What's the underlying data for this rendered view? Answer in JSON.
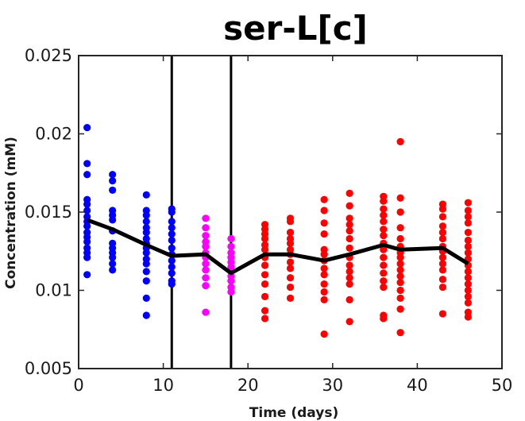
{
  "chart_data": {
    "type": "scatter",
    "title": "ser-L[c]",
    "xlabel": "Time (days)",
    "ylabel": "Concentration (mM)",
    "xlim": [
      0,
      50
    ],
    "ylim": [
      0.005,
      0.025
    ],
    "xticks": [
      0,
      10,
      20,
      30,
      40,
      50
    ],
    "yticks": [
      0.005,
      0.01,
      0.015,
      0.02,
      0.025
    ],
    "xtick_labels": [
      "0",
      "10",
      "20",
      "30",
      "40",
      "50"
    ],
    "ytick_labels": [
      "0.005",
      "0.01",
      "0.015",
      "0.02",
      "0.025"
    ],
    "grid": false,
    "vertical_lines": [
      11,
      18
    ],
    "series": [
      {
        "color": "#0000ff",
        "points": [
          [
            1,
            0.0204
          ],
          [
            1,
            0.0181
          ],
          [
            1,
            0.0174
          ],
          [
            1,
            0.0158
          ],
          [
            1,
            0.0155
          ],
          [
            1,
            0.0151
          ],
          [
            1,
            0.0147
          ],
          [
            1,
            0.0144
          ],
          [
            1,
            0.0141
          ],
          [
            1,
            0.0137
          ],
          [
            1,
            0.0134
          ],
          [
            1,
            0.0131
          ],
          [
            1,
            0.0127
          ],
          [
            1,
            0.0124
          ],
          [
            1,
            0.0121
          ],
          [
            1,
            0.011
          ],
          [
            4,
            0.0174
          ],
          [
            4,
            0.017
          ],
          [
            4,
            0.0164
          ],
          [
            4,
            0.0151
          ],
          [
            4,
            0.0148
          ],
          [
            4,
            0.0145
          ],
          [
            4,
            0.0138
          ],
          [
            4,
            0.013
          ],
          [
            4,
            0.0127
          ],
          [
            4,
            0.0124
          ],
          [
            4,
            0.0121
          ],
          [
            4,
            0.0117
          ],
          [
            4,
            0.0113
          ],
          [
            8,
            0.0161
          ],
          [
            8,
            0.0151
          ],
          [
            8,
            0.0148
          ],
          [
            8,
            0.0144
          ],
          [
            8,
            0.014
          ],
          [
            8,
            0.0137
          ],
          [
            8,
            0.0133
          ],
          [
            8,
            0.013
          ],
          [
            8,
            0.0127
          ],
          [
            8,
            0.0124
          ],
          [
            8,
            0.012
          ],
          [
            8,
            0.0117
          ],
          [
            8,
            0.0112
          ],
          [
            8,
            0.0106
          ],
          [
            8,
            0.0095
          ],
          [
            8,
            0.0084
          ],
          [
            11,
            0.0152
          ],
          [
            11,
            0.015
          ],
          [
            11,
            0.0144
          ],
          [
            11,
            0.014
          ],
          [
            11,
            0.0136
          ],
          [
            11,
            0.0132
          ],
          [
            11,
            0.0127
          ],
          [
            11,
            0.0123
          ],
          [
            11,
            0.0119
          ],
          [
            11,
            0.0115
          ],
          [
            11,
            0.0111
          ],
          [
            11,
            0.0106
          ],
          [
            11,
            0.0104
          ]
        ]
      },
      {
        "color": "#ff00ff",
        "points": [
          [
            15,
            0.0146
          ],
          [
            15,
            0.014
          ],
          [
            15,
            0.0135
          ],
          [
            15,
            0.0131
          ],
          [
            15,
            0.0128
          ],
          [
            15,
            0.0124
          ],
          [
            15,
            0.0121
          ],
          [
            15,
            0.0117
          ],
          [
            15,
            0.0113
          ],
          [
            15,
            0.0108
          ],
          [
            15,
            0.0103
          ],
          [
            15,
            0.0086
          ],
          [
            18,
            0.0133
          ],
          [
            18,
            0.0128
          ],
          [
            18,
            0.0124
          ],
          [
            18,
            0.0121
          ],
          [
            18,
            0.0118
          ],
          [
            18,
            0.0115
          ],
          [
            18,
            0.0112
          ],
          [
            18,
            0.0109
          ],
          [
            18,
            0.0106
          ],
          [
            18,
            0.0102
          ],
          [
            18,
            0.0099
          ]
        ]
      },
      {
        "color": "#ff0000",
        "points": [
          [
            22,
            0.0142
          ],
          [
            22,
            0.0139
          ],
          [
            22,
            0.0136
          ],
          [
            22,
            0.0133
          ],
          [
            22,
            0.0129
          ],
          [
            22,
            0.0126
          ],
          [
            22,
            0.0121
          ],
          [
            22,
            0.0116
          ],
          [
            22,
            0.011
          ],
          [
            22,
            0.0104
          ],
          [
            22,
            0.0096
          ],
          [
            22,
            0.0087
          ],
          [
            22,
            0.0082
          ],
          [
            25,
            0.0146
          ],
          [
            25,
            0.0144
          ],
          [
            25,
            0.0137
          ],
          [
            25,
            0.0133
          ],
          [
            25,
            0.013
          ],
          [
            25,
            0.0126
          ],
          [
            25,
            0.0123
          ],
          [
            25,
            0.0118
          ],
          [
            25,
            0.0114
          ],
          [
            25,
            0.0108
          ],
          [
            25,
            0.0102
          ],
          [
            25,
            0.0095
          ],
          [
            29,
            0.0158
          ],
          [
            29,
            0.0151
          ],
          [
            29,
            0.0143
          ],
          [
            29,
            0.0136
          ],
          [
            29,
            0.0126
          ],
          [
            29,
            0.0123
          ],
          [
            29,
            0.0119
          ],
          [
            29,
            0.0114
          ],
          [
            29,
            0.011
          ],
          [
            29,
            0.0104
          ],
          [
            29,
            0.0099
          ],
          [
            29,
            0.0094
          ],
          [
            29,
            0.0072
          ],
          [
            32,
            0.0162
          ],
          [
            32,
            0.0154
          ],
          [
            32,
            0.0146
          ],
          [
            32,
            0.0142
          ],
          [
            32,
            0.0138
          ],
          [
            32,
            0.0133
          ],
          [
            32,
            0.0127
          ],
          [
            32,
            0.0121
          ],
          [
            32,
            0.0116
          ],
          [
            32,
            0.0112
          ],
          [
            32,
            0.0108
          ],
          [
            32,
            0.0104
          ],
          [
            32,
            0.0094
          ],
          [
            32,
            0.008
          ],
          [
            36,
            0.016
          ],
          [
            36,
            0.0157
          ],
          [
            36,
            0.0152
          ],
          [
            36,
            0.0148
          ],
          [
            36,
            0.0144
          ],
          [
            36,
            0.0139
          ],
          [
            36,
            0.0135
          ],
          [
            36,
            0.013
          ],
          [
            36,
            0.0126
          ],
          [
            36,
            0.0121
          ],
          [
            36,
            0.0116
          ],
          [
            36,
            0.0111
          ],
          [
            36,
            0.0106
          ],
          [
            36,
            0.0102
          ],
          [
            36,
            0.0084
          ],
          [
            36,
            0.0082
          ],
          [
            38,
            0.0195
          ],
          [
            38,
            0.0159
          ],
          [
            38,
            0.015
          ],
          [
            38,
            0.014
          ],
          [
            38,
            0.0133
          ],
          [
            38,
            0.0128
          ],
          [
            38,
            0.0124
          ],
          [
            38,
            0.0121
          ],
          [
            38,
            0.0117
          ],
          [
            38,
            0.0113
          ],
          [
            38,
            0.0109
          ],
          [
            38,
            0.0105
          ],
          [
            38,
            0.01
          ],
          [
            38,
            0.0095
          ],
          [
            38,
            0.0088
          ],
          [
            38,
            0.0073
          ],
          [
            43,
            0.0155
          ],
          [
            43,
            0.0152
          ],
          [
            43,
            0.0147
          ],
          [
            43,
            0.0141
          ],
          [
            43,
            0.0137
          ],
          [
            43,
            0.0133
          ],
          [
            43,
            0.0128
          ],
          [
            43,
            0.0125
          ],
          [
            43,
            0.0121
          ],
          [
            43,
            0.0117
          ],
          [
            43,
            0.0113
          ],
          [
            43,
            0.0107
          ],
          [
            43,
            0.0102
          ],
          [
            43,
            0.0085
          ],
          [
            46,
            0.0156
          ],
          [
            46,
            0.0151
          ],
          [
            46,
            0.0147
          ],
          [
            46,
            0.0143
          ],
          [
            46,
            0.0137
          ],
          [
            46,
            0.0132
          ],
          [
            46,
            0.0128
          ],
          [
            46,
            0.0124
          ],
          [
            46,
            0.012
          ],
          [
            46,
            0.0116
          ],
          [
            46,
            0.0112
          ],
          [
            46,
            0.0108
          ],
          [
            46,
            0.0104
          ],
          [
            46,
            0.01
          ],
          [
            46,
            0.0096
          ],
          [
            46,
            0.0092
          ],
          [
            46,
            0.0086
          ],
          [
            46,
            0.0083
          ]
        ]
      }
    ],
    "mean_line": {
      "color": "#000000",
      "x": [
        1,
        4,
        8,
        11,
        15,
        18,
        22,
        25,
        29,
        32,
        36,
        38,
        43,
        46
      ],
      "y": [
        0.0145,
        0.0139,
        0.0129,
        0.0122,
        0.0123,
        0.0111,
        0.0123,
        0.0123,
        0.0119,
        0.0123,
        0.0129,
        0.0126,
        0.0127,
        0.0117
      ]
    }
  }
}
